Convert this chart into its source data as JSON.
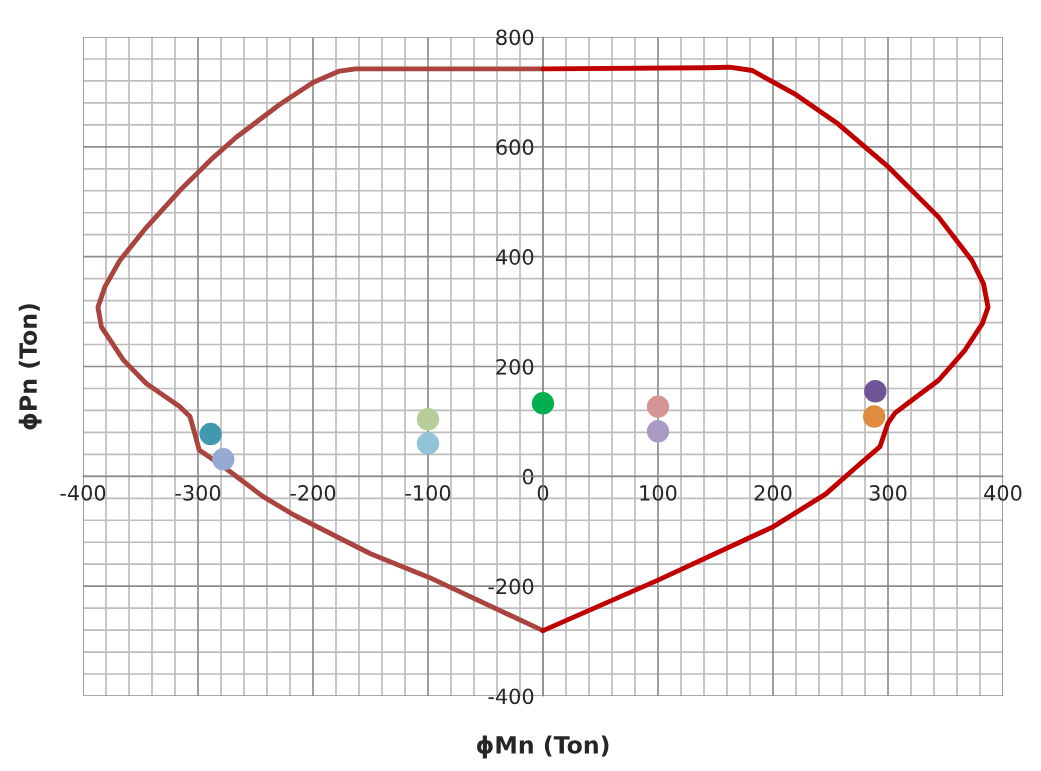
{
  "chart_data": {
    "type": "line",
    "xlabel": "ϕMn (Ton)",
    "ylabel": "ϕPn (Ton)",
    "xlim": [
      -400,
      400
    ],
    "ylim": [
      -400,
      800
    ],
    "xticks": [
      -400,
      -300,
      -200,
      -100,
      0,
      100,
      200,
      300,
      400
    ],
    "yticks": [
      -400,
      -200,
      0,
      200,
      400,
      600,
      800
    ],
    "grid": true,
    "line_style": "solid",
    "series": [
      {
        "marker": "none",
        "color": "#a9443f",
        "x": [
          0,
          -163,
          -177,
          -200,
          -229,
          -267,
          -287,
          -316,
          -345,
          -368,
          -381,
          -387,
          -384,
          -365,
          -345,
          -316,
          -307,
          -303,
          -299,
          -278,
          -244,
          -217,
          -150,
          -99,
          0
        ],
        "values": [
          742,
          742,
          738,
          717,
          677,
          617,
          580,
          520,
          453,
          393,
          345,
          308,
          272,
          212,
          169,
          127,
          109,
          79,
          48,
          18,
          -36,
          -70,
          -141,
          -184,
          -281
        ]
      },
      {
        "marker": "none",
        "color": "#c00000",
        "x": [
          0,
          100,
          200,
          246,
          272,
          293,
          300,
          306,
          321,
          344,
          367,
          382,
          387,
          383,
          373,
          344,
          301,
          257,
          220,
          199,
          182,
          162,
          142,
          0
        ],
        "values": [
          -281,
          -189,
          -92,
          -32,
          16,
          54,
          97,
          115,
          139,
          175,
          230,
          278,
          308,
          351,
          393,
          472,
          562,
          641,
          695,
          719,
          739,
          745,
          744,
          742
        ]
      },
      {
        "type": "scatter",
        "marker": "circle",
        "color": "#4198af",
        "x": [
          -289
        ],
        "values": [
          77
        ]
      },
      {
        "type": "scatter",
        "marker": "circle",
        "color": "#95a9d3",
        "x": [
          -278
        ],
        "values": [
          31
        ]
      },
      {
        "type": "scatter",
        "marker": "circle",
        "color": "#b7cd98",
        "x": [
          -100
        ],
        "values": [
          104
        ]
      },
      {
        "type": "scatter",
        "marker": "circle",
        "color": "#92c3d6",
        "x": [
          -100
        ],
        "values": [
          60
        ]
      },
      {
        "type": "scatter",
        "marker": "circle",
        "color": "#00b050",
        "x": [
          0
        ],
        "values": [
          133
        ]
      },
      {
        "type": "scatter",
        "marker": "circle",
        "color": "#d49594",
        "x": [
          100
        ],
        "values": [
          127
        ]
      },
      {
        "type": "scatter",
        "marker": "circle",
        "color": "#a99bc4",
        "x": [
          100
        ],
        "values": [
          82
        ]
      },
      {
        "type": "scatter",
        "marker": "circle",
        "color": "#6f5598",
        "x": [
          289
        ],
        "values": [
          155
        ]
      },
      {
        "type": "scatter",
        "marker": "circle",
        "color": "#e08c3f",
        "x": [
          288
        ],
        "values": [
          109
        ]
      }
    ]
  }
}
